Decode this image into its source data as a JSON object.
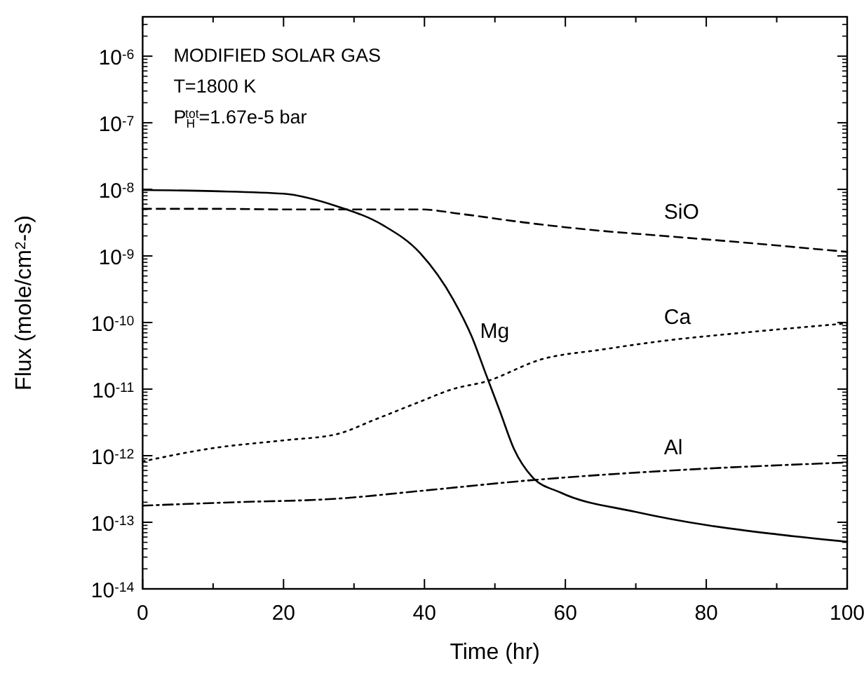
{
  "chart_data": {
    "type": "line",
    "title": "MODIFIED SOLAR GAS",
    "subtitle": "T=1800 K",
    "xlabel": "Time (hr)",
    "ylabel": "Flux (mole/cm$^{2}$-s)",
    "log": "y",
    "grid": false,
    "marker": "none",
    "xlim": [
      0,
      100
    ],
    "xticks": [
      0,
      {
        "value": 10,
        "label": null
      },
      20,
      {
        "value": 30,
        "label": null
      },
      40,
      {
        "value": 50,
        "label": null
      },
      60,
      {
        "value": 70,
        "label": null
      },
      80,
      {
        "value": 90,
        "label": null
      },
      100
    ],
    "ylim": [
      1e-14,
      3.9e-06
    ],
    "yticks": [
      {
        "value": 1e-14,
        "label": "10$^{-14}$"
      },
      {
        "value": 1e-13,
        "label": "10$^{-13}$"
      },
      {
        "value": 1e-12,
        "label": "10$^{-12}$"
      },
      {
        "value": 1e-11,
        "label": "10$^{-11}$"
      },
      {
        "value": 1e-10,
        "label": "10$^{-10}$"
      },
      {
        "value": 1e-09,
        "label": "10$^{-9}$"
      },
      {
        "value": 1e-08,
        "label": "10$^{-8}$"
      },
      {
        "value": 1e-07,
        "label": "10$^{-7}$"
      },
      {
        "value": 1e-06,
        "label": "10$^{-6}$"
      }
    ],
    "series": [
      {
        "name": "Mg",
        "color": "#000000",
        "line_style": "solid",
        "x": [
          0,
          10,
          20,
          27.5,
          34.1,
          39.4,
          44.1,
          46.7,
          48.7,
          50.7,
          52.7,
          55.3,
          59.3,
          69.9,
          80.5,
          90,
          100
        ],
        "values": [
          9.8e-09,
          9.4e-09,
          8.6e-09,
          5.6e-09,
          2.9e-09,
          1.1e-09,
          2.2e-10,
          6.2e-11,
          1.7e-11,
          4.7e-12,
          1.27e-12,
          4.8e-13,
          2.8e-13,
          1.44e-13,
          8.9e-14,
          6.6e-14,
          5.1e-14
        ]
      },
      {
        "name": "SiO",
        "color": "#000000",
        "line_style": "dashed",
        "x": [
          0,
          10,
          20,
          27.5,
          39.4,
          45,
          54,
          63,
          73.9,
          85,
          100
        ],
        "values": [
          5.1e-09,
          5.1e-09,
          5e-09,
          5e-09,
          5e-09,
          4.3e-09,
          3.2e-09,
          2.5e-09,
          2e-09,
          1.6e-09,
          1.15e-09
        ]
      },
      {
        "name": "Ca",
        "color": "#000000",
        "line_style": "dotted",
        "x": [
          0,
          10,
          20,
          27.5,
          33,
          39.4,
          44,
          48.7,
          56.6,
          65,
          73.9,
          85,
          100
        ],
        "values": [
          8.2e-13,
          1.3e-12,
          1.7e-12,
          2.1e-12,
          3.5e-12,
          6.5e-12,
          1e-11,
          1.3e-11,
          2.8e-11,
          3.9e-11,
          5.3e-11,
          7e-11,
          9.7e-11
        ]
      },
      {
        "name": "Al",
        "color": "#000000",
        "line_style": "dashdot",
        "x": [
          0,
          13,
          27.5,
          40,
          55.3,
          73.9,
          100
        ],
        "values": [
          1.78e-13,
          2e-13,
          2.26e-13,
          3e-13,
          4.3e-13,
          5.9e-13,
          7.9e-13
        ]
      }
    ],
    "annotations": [
      "P$_{H}$$^{tot}$=1.67e-5 bar"
    ]
  }
}
